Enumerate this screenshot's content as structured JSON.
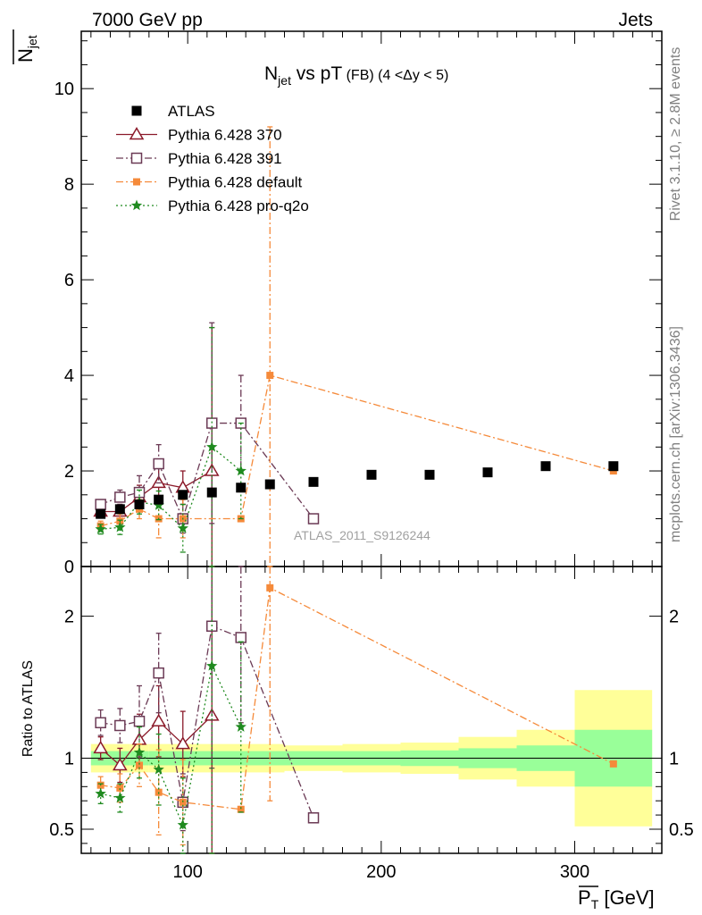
{
  "header": {
    "left": "7000 GeV pp",
    "right": "Jets",
    "side_top": "Rivet 3.1.10, ≥ 2.8M events",
    "side_bottom": "mcplots.cern.ch [arXiv:1306.3436]"
  },
  "chart_data": {
    "type": "scatter",
    "title_main": "N",
    "title_sub": "jet",
    "title_mid": " vs pT",
    "title_tag": " (FB)",
    "title_range": " (4 <Δy < 5)",
    "ylabel_top": "N",
    "ylabel_top_sub": "jet",
    "ylabel_bottom": "Ratio to ATLAS",
    "xlabel": "P",
    "xlabel_sub": "T",
    "xlabel_unit": " [GeV]",
    "watermark": "ATLAS_2011_S9126244",
    "xlim": [
      45,
      345
    ],
    "ylim": [
      0,
      11.2
    ],
    "ratio_ylim": [
      0.33,
      2.35
    ],
    "x_ticks": [
      "100",
      "200",
      "300"
    ],
    "y_ticks": [
      "0",
      "2",
      "4",
      "6",
      "8",
      "10"
    ],
    "ratio_ticks": [
      "0.5",
      "1",
      "2"
    ],
    "legend_position": "top-left",
    "colors": {
      "atlas": "#000000",
      "p370": "#8b1a2a",
      "p391": "#6b3a55",
      "pdefault": "#f58a3a",
      "pq2o": "#1f8a1f",
      "band_inner": "#99ff99",
      "band_outer": "#ffff99"
    },
    "series": [
      {
        "name": "ATLAS",
        "x": [
          55,
          65,
          75,
          85,
          97.5,
          112.5,
          127.5,
          142.5,
          165,
          195,
          225,
          255,
          285,
          320
        ],
        "y": [
          1.1,
          1.2,
          1.3,
          1.4,
          1.5,
          1.55,
          1.65,
          1.72,
          1.77,
          1.92,
          1.92,
          1.97,
          2.1,
          2.1
        ],
        "err": [
          0.05,
          0.05,
          0.05,
          0.06,
          0.06,
          0.07,
          0.07,
          0.07,
          0.07,
          0.07,
          0.07,
          0.07,
          0.07,
          0.08
        ]
      },
      {
        "name": "Pythia 6.428 370",
        "x": [
          55,
          65,
          75,
          85,
          97.5,
          112.5
        ],
        "y": [
          1.15,
          1.15,
          1.45,
          1.75,
          1.65,
          2.0
        ],
        "err": [
          0.1,
          0.15,
          0.25,
          0.35,
          0.35,
          3.0
        ]
      },
      {
        "name": "Pythia 6.428 391",
        "x": [
          55,
          65,
          75,
          85,
          97.5,
          112.5,
          127.5,
          165
        ],
        "y": [
          1.3,
          1.45,
          1.55,
          2.15,
          1.0,
          3.0,
          3.0,
          1.0
        ],
        "err": [
          0.1,
          0.15,
          0.35,
          0.4,
          0.3,
          2.1,
          1.0,
          0
        ]
      },
      {
        "name": "Pythia 6.428 default",
        "x": [
          55,
          65,
          75,
          85,
          97.5,
          127.5,
          142.5,
          320
        ],
        "y": [
          0.85,
          0.95,
          1.2,
          1.0,
          1.0,
          1.0,
          4.0,
          2.0
        ],
        "err": [
          0.1,
          0.15,
          0.2,
          0.4,
          0.4,
          0,
          5.2,
          0
        ]
      },
      {
        "name": "Pythia 6.428 pro-q2o",
        "x": [
          55,
          65,
          75,
          85,
          97.5,
          112.5,
          127.5
        ],
        "y": [
          0.78,
          0.82,
          1.35,
          1.28,
          0.8,
          2.5,
          2.0
        ],
        "err": [
          0.1,
          0.15,
          0.25,
          0.3,
          0.5,
          2.5,
          1.0
        ]
      }
    ],
    "ratio_series": [
      {
        "name": "Pythia 6.428 370",
        "x": [
          55,
          65,
          75,
          85,
          97.5,
          112.5
        ],
        "y": [
          1.07,
          0.95,
          1.13,
          1.26,
          1.1,
          1.3
        ],
        "err": [
          0.08,
          0.12,
          0.18,
          0.25,
          0.23,
          1.9
        ]
      },
      {
        "name": "Pythia 6.428 391",
        "x": [
          55,
          65,
          75,
          85,
          97.5,
          112.5,
          127.5,
          165
        ],
        "y": [
          1.25,
          1.23,
          1.26,
          1.6,
          0.69,
          1.93,
          1.85,
          0.58
        ],
        "err": [
          0.09,
          0.12,
          0.25,
          0.28,
          0.2,
          1.0,
          0.6,
          0
        ]
      },
      {
        "name": "Pythia 6.428 default",
        "x": [
          55,
          65,
          75,
          85,
          97.5,
          127.5,
          142.5,
          320
        ],
        "y": [
          0.81,
          0.79,
          0.95,
          0.76,
          0.69,
          0.64,
          2.2,
          0.96
        ],
        "err": [
          0.06,
          0.1,
          0.15,
          0.3,
          0.3,
          0,
          1.5,
          0
        ]
      },
      {
        "name": "Pythia 6.428 pro-q2o",
        "x": [
          55,
          65,
          75,
          85,
          97.5,
          112.5,
          127.5
        ],
        "y": [
          0.75,
          0.72,
          1.04,
          0.92,
          0.53,
          1.65,
          1.22
        ],
        "err": [
          0.07,
          0.1,
          0.18,
          0.25,
          0.33,
          1.5,
          0.6
        ]
      }
    ],
    "bands": [
      {
        "x0": 50,
        "x1": 60,
        "inner": 0.05,
        "outer": 0.1
      },
      {
        "x0": 60,
        "x1": 70,
        "inner": 0.05,
        "outer": 0.1
      },
      {
        "x0": 70,
        "x1": 80,
        "inner": 0.05,
        "outer": 0.1
      },
      {
        "x0": 80,
        "x1": 90,
        "inner": 0.05,
        "outer": 0.1
      },
      {
        "x0": 90,
        "x1": 105,
        "inner": 0.05,
        "outer": 0.1
      },
      {
        "x0": 105,
        "x1": 120,
        "inner": 0.05,
        "outer": 0.1
      },
      {
        "x0": 120,
        "x1": 135,
        "inner": 0.05,
        "outer": 0.1
      },
      {
        "x0": 135,
        "x1": 150,
        "inner": 0.05,
        "outer": 0.1
      },
      {
        "x0": 150,
        "x1": 180,
        "inner": 0.05,
        "outer": 0.09
      },
      {
        "x0": 180,
        "x1": 210,
        "inner": 0.05,
        "outer": 0.1
      },
      {
        "x0": 210,
        "x1": 240,
        "inner": 0.055,
        "outer": 0.11
      },
      {
        "x0": 240,
        "x1": 270,
        "inner": 0.07,
        "outer": 0.15
      },
      {
        "x0": 270,
        "x1": 300,
        "inner": 0.09,
        "outer": 0.2
      },
      {
        "x0": 300,
        "x1": 340,
        "inner": 0.2,
        "outer": 0.48
      }
    ]
  }
}
